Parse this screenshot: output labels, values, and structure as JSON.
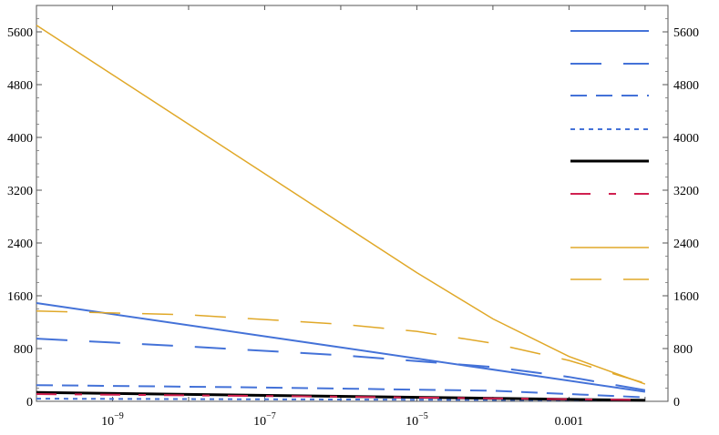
{
  "chart_data": {
    "type": "line",
    "x_scale": "log",
    "xlim": [
      1e-10,
      0.02
    ],
    "ylim": [
      0,
      6000
    ],
    "x_ticks": [
      {
        "value": 1e-09,
        "base": "10",
        "exp": "−9"
      },
      {
        "value": 1e-07,
        "base": "10",
        "exp": "−7"
      },
      {
        "value": 1e-05,
        "base": "10",
        "exp": "−5"
      },
      {
        "value": 0.001,
        "label": "0.001"
      }
    ],
    "y_ticks": [
      0,
      800,
      1600,
      2400,
      3200,
      4000,
      4800,
      5600
    ],
    "y_tick_labels": [
      "0",
      "800",
      "1600",
      "2400",
      "3200",
      "4000",
      "4800",
      "5600"
    ],
    "grid": false,
    "legend": "right",
    "series": [
      {
        "color": "#4472d8",
        "dash": "none",
        "width": 2,
        "x": [
          1e-10,
          0.01
        ],
        "y": [
          1490,
          145
        ]
      },
      {
        "color": "#4472d8",
        "dash": "long-gap",
        "width": 2,
        "x": [
          1e-10,
          1e-08,
          1e-06,
          0.0001,
          0.001,
          0.01
        ],
        "y": [
          950,
          830,
          700,
          520,
          370,
          170
        ]
      },
      {
        "color": "#4472d8",
        "dash": "medium",
        "width": 2,
        "x": [
          1e-10,
          1e-07,
          0.0001,
          0.01
        ],
        "y": [
          245,
          210,
          160,
          60
        ]
      },
      {
        "color": "#4472d8",
        "dash": "dotted",
        "width": 2,
        "x": [
          1e-10,
          0.01
        ],
        "y": [
          40,
          15
        ]
      },
      {
        "color": "#000000",
        "dash": "none",
        "width": 3,
        "x": [
          1e-10,
          0.01
        ],
        "y": [
          135,
          15
        ]
      },
      {
        "color": "#d02050",
        "dash": "dash-dot",
        "width": 2,
        "x": [
          1e-10,
          1e-06,
          0.01
        ],
        "y": [
          110,
          70,
          20
        ]
      },
      {
        "color": "#e0a828",
        "dash": "none",
        "width": 1.5,
        "x": [
          1e-10,
          1e-09,
          1e-08,
          1e-07,
          1e-06,
          1e-05,
          0.0001,
          0.001,
          0.01
        ],
        "y": [
          5700,
          4950,
          4200,
          3450,
          2700,
          1950,
          1250,
          680,
          260
        ]
      },
      {
        "color": "#e0a828",
        "dash": "long-gap",
        "width": 1.5,
        "x": [
          1e-10,
          1e-08,
          1e-06,
          1e-05,
          0.0001,
          0.001,
          0.01
        ],
        "y": [
          1370,
          1310,
          1170,
          1060,
          880,
          620,
          275
        ]
      }
    ]
  }
}
